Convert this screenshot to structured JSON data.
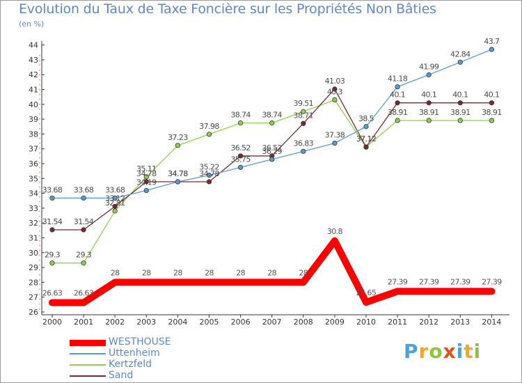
{
  "chart_data": {
    "type": "line",
    "title": "Evolution du Taux de Taxe Foncière sur les Propriétés Non Bâties",
    "unit_label": "(en %)",
    "xlabel": "",
    "ylabel": "(en %)",
    "ylim": [
      26,
      44
    ],
    "yticks": [
      "26",
      "27",
      "28",
      "29",
      "30",
      "31",
      "32",
      "33",
      "34",
      "35",
      "36",
      "37",
      "38",
      "39",
      "40",
      "41",
      "42",
      "43",
      "44"
    ],
    "categories": [
      "2000",
      "2001",
      "2002",
      "2003",
      "2004",
      "2005",
      "2006",
      "2007",
      "2008",
      "2009",
      "2010",
      "2011",
      "2012",
      "2013",
      "2014"
    ],
    "grid": false,
    "series": [
      {
        "name": "WESTHOUSE",
        "color": "#ff0000",
        "values": [
          26.63,
          26.63,
          28,
          28,
          28,
          28,
          28,
          28,
          28,
          30.8,
          26.65,
          27.39,
          27.39,
          27.39,
          27.39
        ],
        "labels": [
          "26.63",
          "26.63",
          "28",
          "28",
          "28",
          "28",
          "28",
          "28",
          "28",
          "30.8",
          "26.65",
          "27.39",
          "27.39",
          "27.39",
          "27.39"
        ]
      },
      {
        "name": "Uttenheim",
        "color": "#5b9bd5",
        "values": [
          33.68,
          33.68,
          33.68,
          34.19,
          34.78,
          35.22,
          35.75,
          36.29,
          36.83,
          37.38,
          38.5,
          41.18,
          41.99,
          42.84,
          43.7
        ],
        "labels": [
          "33.68",
          "33.68",
          "33.68",
          "34.19",
          "34.78",
          "35.22",
          "35.75",
          "36.29",
          "36.83",
          "37.38",
          "38.5",
          "41.18",
          "41.99",
          "42.84",
          "43.7"
        ]
      },
      {
        "name": "Kertzfeld",
        "color": "#8fd14f",
        "values": [
          29.3,
          29.3,
          32.81,
          35.11,
          37.23,
          37.98,
          38.74,
          38.74,
          39.51,
          40.3,
          37.12,
          38.91,
          38.91,
          38.91,
          38.91
        ],
        "labels": [
          "29.3",
          "29.3",
          "32.81",
          "35.11",
          "37.23",
          "37.98",
          "38.74",
          "38.74",
          "39.51",
          "40.3",
          "37.12",
          "38.91",
          "38.91",
          "38.91",
          "38.91"
        ]
      },
      {
        "name": "Sand",
        "color": "#7a2a2e",
        "values": [
          31.54,
          31.54,
          33.12,
          34.78,
          34.78,
          34.78,
          36.52,
          36.52,
          38.71,
          41.03,
          37.12,
          40.1,
          40.1,
          40.1,
          40.1
        ],
        "labels": [
          "31.54",
          "31.54",
          "33.12",
          "34.78",
          "34.78",
          "34.78",
          "36.52",
          "36.52",
          "38.71",
          "41.03",
          "37.12",
          "40.1",
          "40.1",
          "40.1",
          "40.1"
        ]
      }
    ]
  },
  "legend": {
    "items": [
      {
        "label": "WESTHOUSE",
        "color": "#ff0000"
      },
      {
        "label": "Uttenheim",
        "color": "#5b9bd5"
      },
      {
        "label": "Kertzfeld",
        "color": "#8fd14f"
      },
      {
        "label": "Sand",
        "color": "#7a2a2e"
      }
    ]
  },
  "logo": {
    "text": "Proxiti",
    "letters": [
      "P",
      "r",
      "o",
      "x",
      "i",
      "t",
      "i"
    ],
    "colors": [
      "#4aa3df",
      "#f5a623",
      "#8cc63f",
      "#e94e1b",
      "#4aa3df",
      "#f5a623",
      "#8cc63f"
    ]
  }
}
